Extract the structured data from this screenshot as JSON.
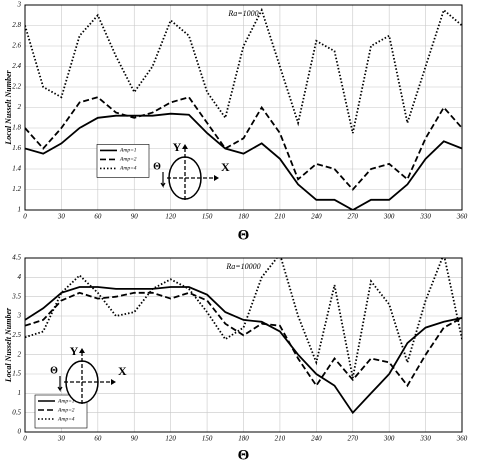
{
  "chart_data": [
    {
      "type": "line",
      "title": "Ra=1000",
      "y_label": "Local Nusselt Number",
      "x_label": "Θ",
      "x": [
        0,
        15,
        30,
        45,
        60,
        75,
        90,
        105,
        120,
        135,
        150,
        165,
        180,
        195,
        210,
        225,
        240,
        255,
        270,
        285,
        300,
        315,
        330,
        345,
        360
      ],
      "xlim": [
        0,
        360
      ],
      "xticks": [
        0,
        30,
        60,
        90,
        120,
        150,
        180,
        210,
        240,
        270,
        300,
        330,
        360
      ],
      "ylim": [
        1,
        3
      ],
      "yticks": [
        1,
        1.2,
        1.4,
        1.6,
        1.8,
        2,
        2.2,
        2.4,
        2.6,
        2.8,
        3
      ],
      "grid": true,
      "legend_loc": "center left",
      "annotations": [
        "Y",
        "X",
        "Θ"
      ],
      "series": [
        {
          "name": "Amp=1",
          "color": "#000000",
          "linestyle": "solid",
          "values": [
            1.6,
            1.55,
            1.65,
            1.8,
            1.9,
            1.92,
            1.92,
            1.92,
            1.94,
            1.93,
            1.75,
            1.6,
            1.55,
            1.65,
            1.5,
            1.25,
            1.1,
            1.1,
            1.0,
            1.1,
            1.1,
            1.25,
            1.5,
            1.67,
            1.6
          ]
        },
        {
          "name": "Amp=2",
          "color": "#000000",
          "linestyle": "dashed",
          "values": [
            1.8,
            1.6,
            1.8,
            2.05,
            2.1,
            1.95,
            1.9,
            1.95,
            2.05,
            2.1,
            1.85,
            1.6,
            1.7,
            2.0,
            1.75,
            1.3,
            1.45,
            1.4,
            1.2,
            1.4,
            1.45,
            1.3,
            1.7,
            2.0,
            1.8
          ]
        },
        {
          "name": "Amp=4",
          "color": "#000000",
          "linestyle": "dotted",
          "values": [
            2.8,
            2.2,
            2.1,
            2.7,
            2.9,
            2.5,
            2.15,
            2.4,
            2.85,
            2.7,
            2.15,
            1.9,
            2.6,
            2.95,
            2.4,
            1.85,
            2.65,
            2.55,
            1.75,
            2.6,
            2.7,
            1.85,
            2.4,
            2.95,
            2.8
          ]
        }
      ]
    },
    {
      "type": "line",
      "title": "Ra=10000",
      "y_label": "Local Nusselt Number",
      "x_label": "Θ",
      "x": [
        0,
        15,
        30,
        45,
        60,
        75,
        90,
        105,
        120,
        135,
        150,
        165,
        180,
        195,
        210,
        225,
        240,
        255,
        270,
        285,
        300,
        315,
        330,
        345,
        360
      ],
      "xlim": [
        0,
        360
      ],
      "xticks": [
        0,
        30,
        60,
        90,
        120,
        150,
        180,
        210,
        240,
        270,
        300,
        330,
        360
      ],
      "ylim": [
        0,
        4.5
      ],
      "yticks": [
        0,
        0.5,
        1,
        1.5,
        2,
        2.5,
        3,
        3.5,
        4,
        4.5
      ],
      "grid": true,
      "legend_loc": "lower left",
      "annotations": [
        "Y",
        "X",
        "Θ"
      ],
      "series": [
        {
          "name": "Amp=1",
          "color": "#000000",
          "linestyle": "solid",
          "values": [
            2.9,
            3.2,
            3.6,
            3.75,
            3.75,
            3.7,
            3.7,
            3.7,
            3.75,
            3.75,
            3.55,
            3.1,
            2.9,
            2.85,
            2.6,
            2.0,
            1.5,
            1.2,
            0.5,
            1.0,
            1.5,
            2.3,
            2.7,
            2.85,
            2.95
          ]
        },
        {
          "name": "Amp=2",
          "color": "#000000",
          "linestyle": "dashed",
          "values": [
            2.75,
            2.9,
            3.4,
            3.6,
            3.45,
            3.5,
            3.6,
            3.6,
            3.45,
            3.6,
            3.4,
            2.8,
            2.5,
            2.8,
            2.75,
            1.9,
            1.2,
            1.9,
            1.35,
            1.9,
            1.8,
            1.2,
            2.0,
            2.7,
            2.95
          ]
        },
        {
          "name": "Amp=4",
          "color": "#000000",
          "linestyle": "dotted",
          "values": [
            2.45,
            2.6,
            3.6,
            4.05,
            3.6,
            3.0,
            3.1,
            3.7,
            3.95,
            3.7,
            3.1,
            2.4,
            2.7,
            4.0,
            4.6,
            3.0,
            1.8,
            3.8,
            1.4,
            3.9,
            3.3,
            1.8,
            3.4,
            4.6,
            2.4
          ]
        }
      ]
    }
  ]
}
